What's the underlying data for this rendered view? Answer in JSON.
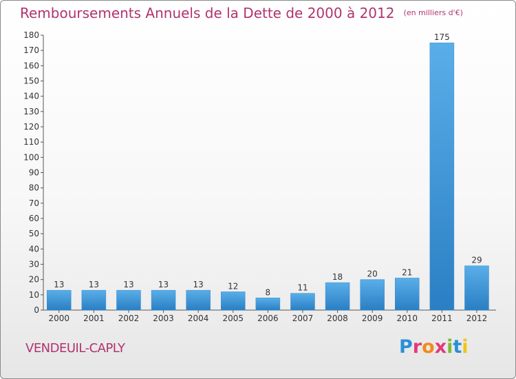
{
  "chart_data": {
    "type": "bar",
    "title": "Remboursements Annuels de la Dette de 2000 à 2012",
    "unit": "(en milliers d'€)",
    "categories": [
      "2000",
      "2001",
      "2002",
      "2003",
      "2004",
      "2005",
      "2006",
      "2007",
      "2008",
      "2009",
      "2010",
      "2011",
      "2012"
    ],
    "values": [
      13,
      13,
      13,
      13,
      13,
      12,
      8,
      11,
      18,
      20,
      21,
      175,
      29
    ],
    "ylim": [
      0,
      180
    ],
    "yticks": [
      0,
      10,
      20,
      30,
      40,
      50,
      60,
      70,
      80,
      90,
      100,
      110,
      120,
      130,
      140,
      150,
      160,
      170,
      180
    ],
    "grid": false,
    "bar_color": "#4a9ee0"
  },
  "commune": "VENDEUIL-CAPLY",
  "logo": {
    "text": "Proxiti"
  }
}
